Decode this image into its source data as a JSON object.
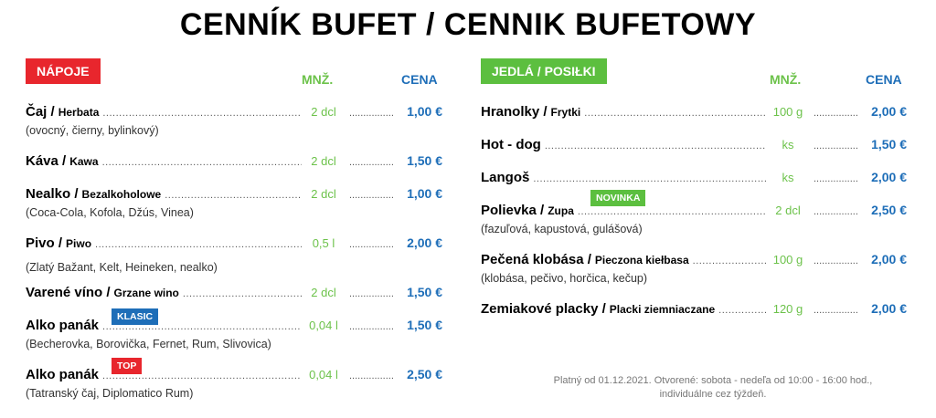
{
  "title": "CENNÍK BUFET / CENNIK BUFETOWY",
  "colors": {
    "red": "#e8262d",
    "green": "#5cbf3f",
    "blue": "#1e6eb8",
    "qty_green": "#6cc24a"
  },
  "left": {
    "section": "NÁPOJE",
    "qty_header": "MNŽ.",
    "price_header": "CENA",
    "items": [
      {
        "name": "Čaj / ",
        "sub": "Herbata",
        "qty": "2 dcl",
        "price": "1,00 €",
        "desc": "(ovocný, čierny, bylinkový)"
      },
      {
        "name": "Káva / ",
        "sub": "Kawa",
        "qty": "2 dcl",
        "price": "1,50 €",
        "desc": ""
      },
      {
        "name": "Nealko / ",
        "sub": "Bezalkoholowe",
        "qty": "2 dcl",
        "price": "1,00 €",
        "desc": "(Coca-Cola, Kofola, Džús, Vinea)"
      },
      {
        "name": "Pivo / ",
        "sub": "Piwo",
        "qty": "0,5 l",
        "price": "2,00 €",
        "desc": "(Zlatý Bažant, Kelt, Heineken, nealko)"
      },
      {
        "name": "Varené víno / ",
        "sub": "Grzane wino",
        "qty": "2 dcl",
        "price": "1,50 €",
        "desc": ""
      },
      {
        "name": "Alko panák",
        "sub": "",
        "qty": "0,04 l",
        "price": "1,50 €",
        "desc": "(Becherovka, Borovička, Fernet, Rum, Slivovica)",
        "tag": "KLASIC"
      },
      {
        "name": "Alko panák",
        "sub": "",
        "qty": "0,04 l",
        "price": "2,50 €",
        "desc": "(Tatranský čaj, Diplomatico Rum)",
        "tag": "TOP"
      }
    ]
  },
  "right": {
    "section": "JEDLÁ / POSIŁKI",
    "qty_header": "MNŽ.",
    "price_header": "CENA",
    "items": [
      {
        "name": "Hranolky / ",
        "sub": "Frytki",
        "qty": "100 g",
        "price": "2,00 €",
        "desc": ""
      },
      {
        "name": "Hot - dog",
        "sub": "",
        "qty": "ks",
        "price": "1,50 €",
        "desc": ""
      },
      {
        "name": "Langoš",
        "sub": "",
        "qty": "ks",
        "price": "2,00 €",
        "desc": ""
      },
      {
        "name": "Polievka / ",
        "sub": "Zupa",
        "qty": "2 dcl",
        "price": "2,50 €",
        "desc": "(fazuľová, kapustová, gulášová)",
        "tag": "NOVINKA"
      },
      {
        "name": "Pečená klobása / ",
        "sub": "Pieczona kiełbasa",
        "qty": "100 g",
        "price": "2,00 €",
        "desc": "(klobása, pečivo, horčica, kečup)"
      },
      {
        "name": "Zemiakové placky / ",
        "sub": "Placki ziemniaczane",
        "qty": "120 g",
        "price": "2,00 €",
        "desc": ""
      }
    ]
  },
  "footer": {
    "line1": "Platný od 01.12.2021. Otvorené: sobota - nedeľa od 10:00 - 16:00 hod.,",
    "line2": "individuálne cez týždeň."
  }
}
